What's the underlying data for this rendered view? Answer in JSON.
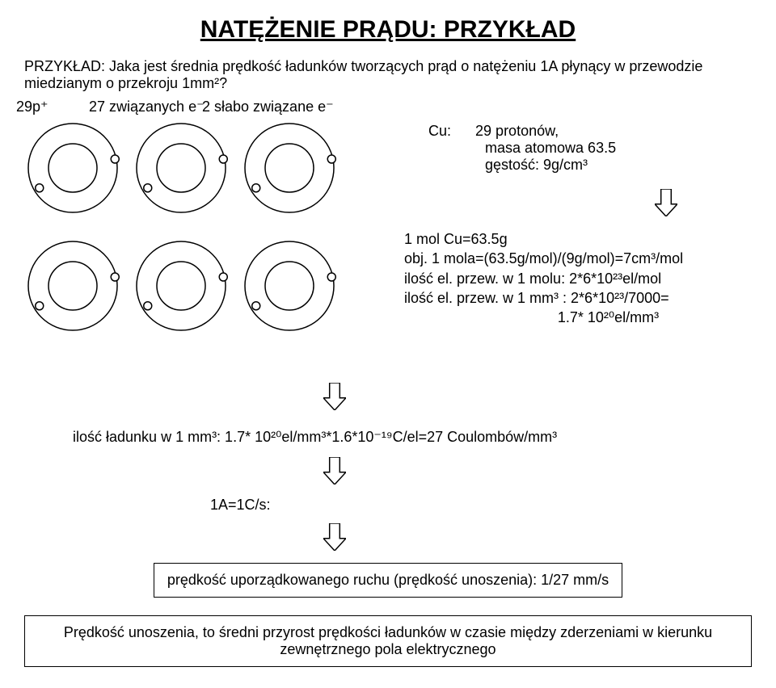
{
  "title": "NATĘŻENIE PRĄDU: PRZYKŁAD",
  "intro": "PRZYKŁAD: Jaka jest średnia prędkość ładunków tworzących prąd o natężeniu 1A płynący w przewodzie miedzianym o przekroju 1mm²?",
  "labels": {
    "p29": "29p⁺",
    "e27": "27 związanych e⁻",
    "e2": "2 słabo związane e⁻"
  },
  "cu": {
    "name": "Cu:",
    "l1": "29 protonów,",
    "l2": "masa atomowa 63.5",
    "l3": "gęstość: 9g/cm³"
  },
  "mol": {
    "l1": "1 mol Cu=63.5g",
    "l2": "obj. 1 mola=(63.5g/mol)/(9g/mol)=7cm³/mol",
    "l3": "ilość el. przew. w 1 molu: 2*6*10²³el/mol",
    "l4": "ilość el. przew. w 1 mm³ : 2*6*10²³/7000=",
    "l5": "1.7* 10²⁰el/mm³"
  },
  "charge": "ilość ładunku w 1 mm³: 1.7* 10²⁰el/mm³*1.6*10⁻¹⁹C/el=27 Coulombów/mm³",
  "oneA": "1A=1C/s:",
  "box1": "prędkość uporządkowanego ruchu (prędkość unoszenia): 1/27 mm/s",
  "box2": "Prędkość unoszenia, to średni przyrost prędkości ładunków w czasie między zderzeniami w kierunku zewnętrznego pola elektrycznego",
  "atom": {
    "r_outer": 55,
    "r_inner": 30,
    "r_small": 5,
    "stroke": "#000000",
    "fill": "#ffffff"
  },
  "arrow": {
    "w": 28,
    "h": 34,
    "color": "#000000",
    "fill": "#ffffff"
  }
}
